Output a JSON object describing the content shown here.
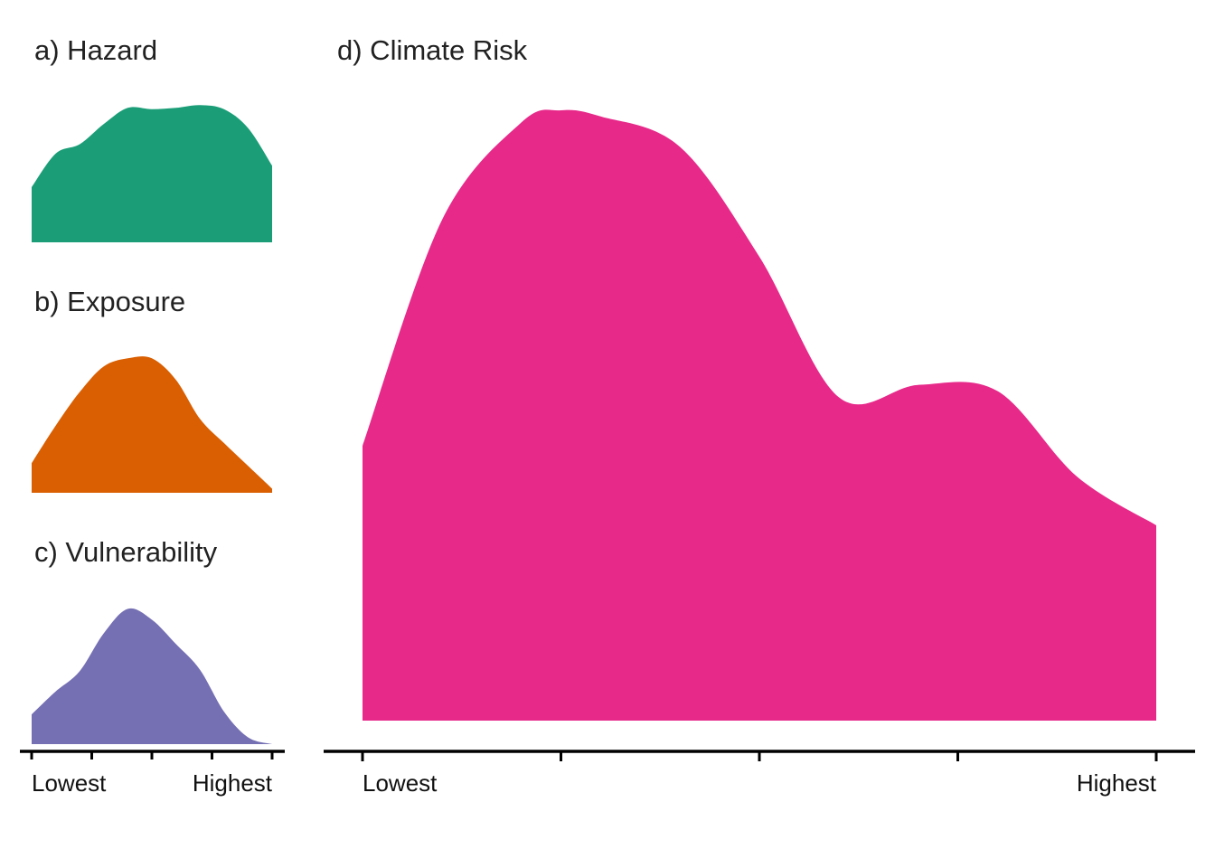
{
  "chart_data": [
    {
      "id": "hazard",
      "type": "area",
      "title": "a) Hazard",
      "color": "#1B9E77",
      "x": [
        0,
        0.1,
        0.2,
        0.3,
        0.4,
        0.5,
        0.6,
        0.7,
        0.8,
        0.9,
        1.0
      ],
      "values": [
        0.41,
        0.66,
        0.73,
        0.88,
        1.0,
        0.99,
        1.0,
        1.02,
        0.99,
        0.85,
        0.57
      ],
      "xlim": [
        0,
        1
      ],
      "ylim": [
        0,
        1.15
      ],
      "x_tick_count": 5,
      "tick_labels": [
        {
          "pos": 0,
          "text": "",
          "anchor": "start"
        },
        {
          "pos": 1,
          "text": "",
          "anchor": "end"
        }
      ]
    },
    {
      "id": "exposure",
      "type": "area",
      "title": "b) Exposure",
      "color": "#D95F02",
      "x": [
        0,
        0.1,
        0.2,
        0.3,
        0.4,
        0.5,
        0.6,
        0.7,
        0.8,
        0.9,
        1.0
      ],
      "values": [
        0.22,
        0.5,
        0.75,
        0.94,
        1.0,
        1.0,
        0.84,
        0.55,
        0.37,
        0.2,
        0.03
      ],
      "xlim": [
        0,
        1
      ],
      "ylim": [
        0,
        1.15
      ],
      "x_tick_count": 5,
      "tick_labels": [
        {
          "pos": 0,
          "text": "",
          "anchor": "start"
        },
        {
          "pos": 1,
          "text": "",
          "anchor": "end"
        }
      ]
    },
    {
      "id": "vulnerability",
      "type": "area",
      "title": "c) Vulnerability",
      "color": "#7570B3",
      "x": [
        0,
        0.1,
        0.2,
        0.3,
        0.4,
        0.5,
        0.6,
        0.7,
        0.8,
        0.9,
        1.0
      ],
      "values": [
        0.22,
        0.39,
        0.54,
        0.82,
        1.0,
        0.92,
        0.74,
        0.55,
        0.24,
        0.05,
        0.0
      ],
      "xlim": [
        0,
        1
      ],
      "ylim": [
        0,
        1.15
      ],
      "x_tick_count": 5,
      "tick_labels": [
        {
          "pos": 0,
          "text": "Lowest",
          "anchor": "start"
        },
        {
          "pos": 1,
          "text": "Highest",
          "anchor": "end"
        }
      ]
    },
    {
      "id": "climate-risk",
      "type": "area",
      "title": "d) Climate Risk",
      "color": "#E7298A",
      "x": [
        0,
        0.1,
        0.2,
        0.25,
        0.3,
        0.4,
        0.5,
        0.6,
        0.7,
        0.8,
        0.9,
        1.0
      ],
      "values": [
        0.45,
        0.82,
        0.98,
        1.0,
        0.99,
        0.94,
        0.76,
        0.53,
        0.55,
        0.54,
        0.4,
        0.32
      ],
      "xlim": [
        0,
        1
      ],
      "ylim": [
        0,
        1.0
      ],
      "x_tick_count": 5,
      "tick_labels": [
        {
          "pos": 0,
          "text": "Lowest",
          "anchor": "start"
        },
        {
          "pos": 1,
          "text": "Highest",
          "anchor": "end"
        }
      ]
    }
  ]
}
